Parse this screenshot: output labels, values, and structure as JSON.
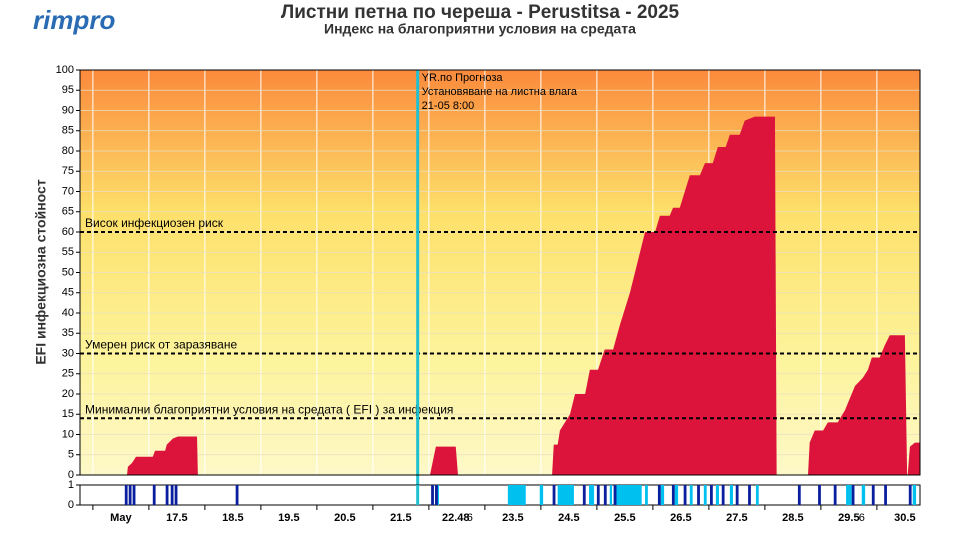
{
  "logo": "rimpro",
  "chart_data": [
    {
      "type": "area",
      "title": "Листни петна по череша - Perustitsa - 2025",
      "subtitle": "Индекс на благоприятни условия на средата",
      "ylabel": "EFI инфекциозна стойност",
      "xlim": [
        15.77,
        30.77
      ],
      "ylim": [
        0,
        100
      ],
      "yticks": [
        0,
        5,
        10,
        15,
        20,
        25,
        30,
        35,
        40,
        45,
        50,
        55,
        60,
        65,
        70,
        75,
        80,
        85,
        90,
        95,
        100
      ],
      "xticks": [
        {
          "value": 16.5,
          "label": "May"
        },
        17.5,
        18.5,
        19.5,
        20.5,
        21.5,
        22.48,
        23.5,
        24.5,
        25.5,
        26.5,
        27.5,
        28.5,
        29.5,
        30.5
      ],
      "xsubticks": [
        {
          "value": 22.73,
          "label": "6"
        },
        {
          "value": 29.73,
          "label": "6"
        }
      ],
      "grid": true,
      "thresholds": [
        {
          "value": 60,
          "label": "Висок инфекциозен риск"
        },
        {
          "value": 30,
          "label": "Умерен риск от заразяване"
        },
        {
          "value": 14,
          "label": "Минимални благоприятни условия на средата ( EFI ) за инфекция"
        }
      ],
      "forecast": {
        "x": 21.8,
        "lines": [
          "YR.по Прогноза",
          "Установяване на листна влага",
          "21-05 8:00"
        ],
        "color": "#20c0d0"
      },
      "series": [
        {
          "color": "#dc143c",
          "x": [
            15.77,
            16.61,
            16.625,
            16.7,
            16.77,
            17.07,
            17.11,
            17.29,
            17.32,
            17.43,
            17.52,
            17.86,
            17.875,
            22.02,
            22.125,
            22.48,
            22.52,
            24.2,
            24.23,
            24.3,
            24.34,
            24.52,
            24.61,
            24.79,
            24.875,
            25.02,
            25.14,
            25.29,
            25.41,
            25.59,
            25.77,
            25.86,
            26.04,
            26.125,
            26.3,
            26.36,
            26.48,
            26.57,
            26.66,
            26.84,
            26.93,
            27.07,
            27.16,
            27.3,
            27.375,
            27.55,
            27.64,
            27.82,
            28.18,
            28.21,
            28.77,
            28.8,
            28.89,
            29.04,
            29.125,
            29.3,
            29.43,
            29.52,
            29.61,
            29.75,
            29.84,
            29.91,
            30.05,
            30.14,
            30.23,
            30.5,
            30.54,
            30.55,
            30.59,
            30.68,
            30.77
          ],
          "values": [
            0,
            0,
            2,
            3,
            4.5,
            4.5,
            6,
            6,
            7.5,
            9,
            9.5,
            9.5,
            0,
            0,
            7,
            7,
            0,
            0,
            7.5,
            7.5,
            11,
            15,
            20,
            20,
            26,
            26,
            31,
            31,
            37,
            45,
            55,
            60,
            60,
            64,
            64,
            66,
            66,
            70,
            74,
            74,
            77,
            77,
            81,
            81,
            84,
            84,
            87.5,
            88.5,
            88.5,
            0,
            0,
            8,
            11,
            11,
            13,
            13,
            16,
            19,
            22,
            24,
            26,
            29,
            29,
            32,
            34.5,
            34.5,
            0,
            0,
            7,
            8,
            8
          ]
        }
      ]
    },
    {
      "type": "interval",
      "ylim": [
        0,
        1
      ],
      "yticks": [
        0,
        1
      ],
      "series": [
        {
          "color": "#00c0f0",
          "x": [
            22.14,
            23.41,
            23.98,
            24.3,
            24.86,
            25.23,
            25.3,
            25.86,
            26.14,
            26.39,
            26.66,
            26.91,
            27.125,
            27.375,
            27.84,
            29.45,
            29.73,
            30.64
          ],
          "x_end": [
            22.18,
            23.73,
            24.04,
            24.59,
            24.95,
            25.27,
            25.8,
            25.91,
            26.2,
            26.45,
            26.71,
            26.96,
            27.18,
            27.43,
            27.89,
            29.55,
            29.79,
            30.7
          ],
          "values": [
            1,
            1,
            1,
            1,
            1,
            1,
            1,
            1,
            1,
            1,
            1,
            1,
            1,
            1,
            1,
            1,
            1,
            1
          ]
        },
        {
          "color": "#0a1f9e",
          "x": [
            16.57,
            16.64,
            16.71,
            17.07,
            17.3,
            17.39,
            17.46,
            18.55,
            22.04,
            22.11,
            24.21,
            24.75,
            25.0,
            25.125,
            25.3,
            26.09,
            26.34,
            26.55,
            26.79,
            27.02,
            27.23,
            27.48,
            27.7,
            28.59,
            28.95,
            29.23,
            29.55,
            29.91,
            30.13,
            30.57
          ],
          "x_end": [
            16.62,
            16.69,
            16.76,
            17.12,
            17.35,
            17.44,
            17.51,
            18.6,
            22.09,
            22.16,
            24.26,
            24.8,
            25.05,
            25.175,
            25.35,
            26.14,
            26.39,
            26.6,
            26.84,
            27.07,
            27.28,
            27.53,
            27.75,
            28.64,
            29.0,
            29.28,
            29.6,
            29.96,
            30.18,
            30.62
          ],
          "values": [
            1,
            1,
            1,
            1,
            1,
            1,
            1,
            1,
            1,
            1,
            1,
            1,
            1,
            1,
            1,
            1,
            1,
            1,
            1,
            1,
            1,
            1,
            1,
            1,
            1,
            1,
            1,
            1,
            1,
            1
          ]
        }
      ]
    }
  ]
}
